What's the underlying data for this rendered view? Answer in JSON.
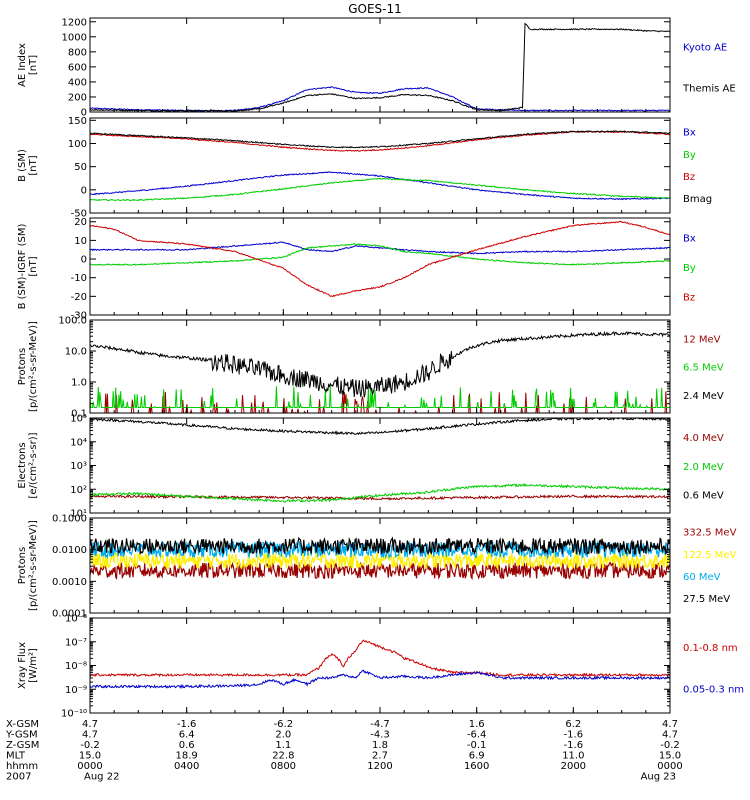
{
  "title": "GOES-11",
  "colors": {
    "black": "#000000",
    "blue": "#0000cc",
    "red": "#cc0000",
    "green": "#00cc00",
    "darkred": "#990000",
    "cyan": "#00aaee",
    "yellow": "#ffee00"
  },
  "chart_data": [
    {
      "type": "line",
      "ylabel": "AE Index\n[nT]",
      "ylim": [
        0,
        1250
      ],
      "yscale": "linear",
      "yticks": [
        "0",
        "200",
        "400",
        "600",
        "800",
        "1000",
        "1200"
      ],
      "ytick_values": [
        0,
        200,
        400,
        600,
        800,
        1000,
        1200
      ],
      "legend_placement": "right",
      "series": [
        {
          "name": "Kyoto AE",
          "color": "blue",
          "x": [
            0,
            2,
            4,
            6,
            7,
            8,
            9,
            10,
            11,
            12,
            13,
            14,
            15,
            16,
            17,
            18,
            19,
            20,
            21,
            22,
            23,
            24
          ],
          "y": [
            50,
            30,
            20,
            20,
            60,
            150,
            300,
            330,
            260,
            250,
            310,
            320,
            200,
            40,
            30,
            20,
            20,
            20,
            20,
            20,
            20,
            20
          ]
        },
        {
          "name": "Themis AE",
          "color": "black",
          "x": [
            0,
            2,
            4,
            6,
            7,
            8,
            9,
            10,
            11,
            12,
            13,
            14,
            15,
            16,
            17,
            17.9,
            18.0,
            18.2,
            19,
            20,
            21,
            22,
            23,
            24
          ],
          "y": [
            30,
            20,
            15,
            15,
            40,
            120,
            220,
            240,
            180,
            190,
            230,
            220,
            150,
            30,
            20,
            60,
            1180,
            1100,
            1100,
            1100,
            1100,
            1100,
            1080,
            1070
          ]
        }
      ]
    },
    {
      "type": "line",
      "ylabel": "B (SM)\n[nT]",
      "ylim": [
        -50,
        155
      ],
      "yscale": "linear",
      "yticks": [
        "-50",
        "0",
        "50",
        "100",
        "150"
      ],
      "ytick_values": [
        -50,
        0,
        50,
        100,
        150
      ],
      "legend_placement": "right",
      "series": [
        {
          "name": "Bx",
          "color": "blue",
          "x": [
            0,
            2,
            4,
            6,
            8,
            10,
            12,
            14,
            16,
            18,
            20,
            22,
            24
          ],
          "y": [
            -10,
            -2,
            8,
            20,
            32,
            38,
            30,
            15,
            0,
            -10,
            -18,
            -20,
            -18
          ]
        },
        {
          "name": "By",
          "color": "green",
          "x": [
            0,
            2,
            4,
            6,
            8,
            10,
            12,
            14,
            16,
            18,
            20,
            22,
            24
          ],
          "y": [
            -22,
            -22,
            -18,
            -10,
            2,
            15,
            24,
            20,
            10,
            0,
            -8,
            -14,
            -18
          ]
        },
        {
          "name": "Bz",
          "color": "red",
          "x": [
            0,
            2,
            4,
            6,
            8,
            10,
            11,
            12,
            14,
            16,
            18,
            20,
            22,
            24
          ],
          "y": [
            120,
            115,
            110,
            102,
            92,
            85,
            84,
            86,
            95,
            108,
            118,
            125,
            125,
            120
          ]
        },
        {
          "name": "Bmag",
          "color": "black",
          "x": [
            0,
            2,
            4,
            6,
            8,
            10,
            11,
            12,
            14,
            16,
            18,
            20,
            22,
            24
          ],
          "y": [
            122,
            117,
            112,
            106,
            98,
            92,
            92,
            93,
            100,
            110,
            120,
            126,
            126,
            122
          ]
        }
      ]
    },
    {
      "type": "line",
      "ylabel": "B (SM)-IGRF (SM)\n[nT]",
      "ylim": [
        -30,
        22
      ],
      "yscale": "linear",
      "yticks": [
        "-30",
        "-20",
        "-10",
        "0",
        "10",
        "20"
      ],
      "ytick_values": [
        -30,
        -20,
        -10,
        0,
        10,
        20
      ],
      "legend_placement": "right",
      "series": [
        {
          "name": "Bx",
          "color": "blue",
          "x": [
            0,
            2,
            4,
            6,
            8,
            9,
            10,
            11,
            12,
            13,
            14,
            16,
            18,
            20,
            22,
            24
          ],
          "y": [
            5,
            5,
            5,
            7,
            9,
            5,
            4,
            7,
            6,
            5,
            4,
            3,
            4,
            4,
            5,
            6
          ]
        },
        {
          "name": "By",
          "color": "green",
          "x": [
            0,
            2,
            4,
            6,
            8,
            9,
            10,
            11,
            12,
            13,
            14,
            16,
            18,
            20,
            22,
            24
          ],
          "y": [
            -3,
            -3,
            -2,
            -1,
            1,
            6,
            7,
            8,
            7,
            4,
            3,
            0,
            -2,
            -3,
            -2,
            -1
          ]
        },
        {
          "name": "Bz",
          "color": "red",
          "x": [
            0,
            1,
            2,
            4,
            6,
            8,
            9,
            10,
            11,
            12,
            13,
            14,
            16,
            18,
            20,
            22,
            23,
            24
          ],
          "y": [
            18,
            16,
            10,
            8,
            4,
            -5,
            -14,
            -20,
            -17,
            -15,
            -10,
            -3,
            5,
            12,
            18,
            20,
            17,
            13
          ]
        }
      ]
    },
    {
      "type": "line",
      "ylabel": "Protons\n[p/(cm²-s-sr-MeV)]",
      "ylim": [
        0.1,
        100
      ],
      "yscale": "log",
      "yticks": [
        "0.1",
        "1.0",
        "10.0",
        "100.0"
      ],
      "ytick_values": [
        0.1,
        1,
        10,
        100
      ],
      "legend_placement": "right",
      "series": [
        {
          "name": "12 MeV",
          "color": "darkred",
          "x": [
            0,
            24
          ],
          "y": [
            0.1,
            0.1
          ]
        },
        {
          "name": "6.5 MeV",
          "color": "green",
          "x": [
            0,
            24
          ],
          "y": [
            0.15,
            0.15
          ]
        },
        {
          "name": "2.4 MeV",
          "color": "black",
          "x": [
            0,
            1,
            2,
            3,
            4,
            5,
            6,
            7,
            8,
            9,
            10,
            11,
            12,
            13,
            14,
            15,
            16,
            17,
            18,
            19,
            20,
            21,
            22,
            23,
            24
          ],
          "y": [
            15,
            12,
            9,
            7,
            6,
            5,
            3.5,
            2.5,
            1.6,
            1.2,
            0.8,
            0.6,
            0.7,
            1.0,
            2,
            6,
            15,
            22,
            25,
            28,
            32,
            35,
            38,
            35,
            33
          ]
        }
      ]
    },
    {
      "type": "line",
      "ylabel": "Electrons\n[e/(cm²-s-sr)]",
      "ylim": [
        10,
        100000
      ],
      "yscale": "log",
      "yticks": [
        "10¹",
        "10²",
        "10³",
        "10⁴",
        "10⁵"
      ],
      "ytick_values": [
        10,
        100,
        1000,
        10000,
        100000
      ],
      "legend_placement": "right",
      "series": [
        {
          "name": "4.0 MeV",
          "color": "darkred",
          "x": [
            0,
            4,
            8,
            12,
            16,
            20,
            24
          ],
          "y": [
            50,
            48,
            45,
            40,
            45,
            50,
            48
          ]
        },
        {
          "name": "2.0 MeV",
          "color": "green",
          "x": [
            0,
            2,
            4,
            6,
            8,
            10,
            12,
            14,
            16,
            18,
            20,
            22,
            24
          ],
          "y": [
            60,
            65,
            50,
            40,
            32,
            35,
            55,
            75,
            130,
            150,
            130,
            110,
            100
          ]
        },
        {
          "name": "0.6 MeV",
          "color": "black",
          "x": [
            0,
            2,
            4,
            6,
            8,
            10,
            11,
            12,
            14,
            16,
            18,
            20,
            22,
            24
          ],
          "y": [
            90000,
            70000,
            50000,
            35000,
            28000,
            24000,
            22000,
            24000,
            35000,
            55000,
            80000,
            95000,
            95000,
            90000
          ]
        }
      ]
    },
    {
      "type": "line",
      "ylabel": "Protons\n[p/(cm²-s-sr-MeV)]",
      "ylim": [
        0.0001,
        0.1
      ],
      "yscale": "log",
      "yticks": [
        "0.0001",
        "0.0010",
        "0.0100",
        "0.1000"
      ],
      "ytick_values": [
        0.0001,
        0.001,
        0.01,
        0.1
      ],
      "legend_placement": "right",
      "series": [
        {
          "name": "332.5 MeV",
          "color": "darkred",
          "x": [
            0,
            24
          ],
          "y": [
            0.0022,
            0.0022
          ]
        },
        {
          "name": "122.5 MeV",
          "color": "yellow",
          "x": [
            0,
            24
          ],
          "y": [
            0.0045,
            0.0045
          ]
        },
        {
          "name": "60 MeV",
          "color": "cyan",
          "x": [
            0,
            24
          ],
          "y": [
            0.01,
            0.01
          ]
        },
        {
          "name": "27.5 MeV",
          "color": "black",
          "x": [
            0,
            24
          ],
          "y": [
            0.013,
            0.013
          ]
        }
      ]
    },
    {
      "type": "line",
      "ylabel": "Xray Flux\n[W/m²]",
      "ylim": [
        1e-10,
        1e-06
      ],
      "yscale": "log",
      "yticks": [
        "10⁻¹⁰",
        "10⁻⁹",
        "10⁻⁸",
        "10⁻⁷",
        "10⁻⁶"
      ],
      "ytick_values": [
        1e-10,
        1e-09,
        1e-08,
        1e-07,
        1e-06
      ],
      "legend_placement": "right",
      "series": [
        {
          "name": "0.1-0.8 nm",
          "color": "red",
          "x": [
            0,
            2,
            4,
            6,
            8,
            9,
            9.5,
            10,
            10.5,
            11,
            11.3,
            12,
            13,
            14,
            15,
            16,
            17,
            18,
            20,
            22,
            24
          ],
          "y": [
            4e-09,
            4e-09,
            4e-09,
            4e-09,
            4e-09,
            4e-09,
            8e-09,
            3e-08,
            8e-09,
            4e-08,
            1.1e-07,
            6e-08,
            2e-08,
            8e-09,
            5e-09,
            5e-09,
            4e-09,
            4e-09,
            4e-09,
            4e-09,
            4e-09
          ]
        },
        {
          "name": "0.05-0.3 nm",
          "color": "blue",
          "x": [
            0,
            2,
            4,
            6,
            7,
            7.5,
            8,
            8.5,
            9,
            9.5,
            10,
            10.5,
            11,
            11.3,
            11.7,
            12,
            13,
            14,
            16,
            17,
            18,
            20,
            22,
            24
          ],
          "y": [
            1.3e-09,
            1.3e-09,
            1.3e-09,
            1.4e-09,
            1.6e-09,
            2.5e-09,
            1.6e-09,
            2.5e-09,
            1.6e-09,
            3e-09,
            3e-09,
            4e-09,
            3e-09,
            6e-09,
            4e-09,
            3e-09,
            3.5e-09,
            3e-09,
            5e-09,
            3e-09,
            3e-09,
            3e-09,
            3e-09,
            3e-09
          ]
        }
      ]
    }
  ],
  "x_axis": {
    "range": [
      0,
      24
    ],
    "ticks": [
      0,
      4,
      8,
      12,
      16,
      20,
      24
    ],
    "rows": [
      {
        "label": "X-GSM",
        "values": [
          "4.7",
          "-1.6",
          "-6.2",
          "-4.7",
          "1.6",
          "6.2",
          "4.7"
        ]
      },
      {
        "label": "Y-GSM",
        "values": [
          "4.7",
          "6.4",
          "2.0",
          "-4.3",
          "-6.4",
          "-1.6",
          "4.7"
        ]
      },
      {
        "label": "Z-GSM",
        "values": [
          "-0.2",
          "0.6",
          "1.1",
          "1.8",
          "-0.1",
          "-1.6",
          "-0.2"
        ]
      },
      {
        "label": "MLT",
        "values": [
          "15.0",
          "18.9",
          "22.8",
          "2.7",
          "6.9",
          "11.0",
          "15.0"
        ]
      },
      {
        "label": "hhmm",
        "values": [
          "0000",
          "0400",
          "0800",
          "1200",
          "1600",
          "2000",
          "0000"
        ]
      },
      {
        "label": "2007",
        "values": [
          "Aug 22",
          "",
          "",
          "",
          "",
          "",
          "Aug 23"
        ]
      }
    ]
  }
}
